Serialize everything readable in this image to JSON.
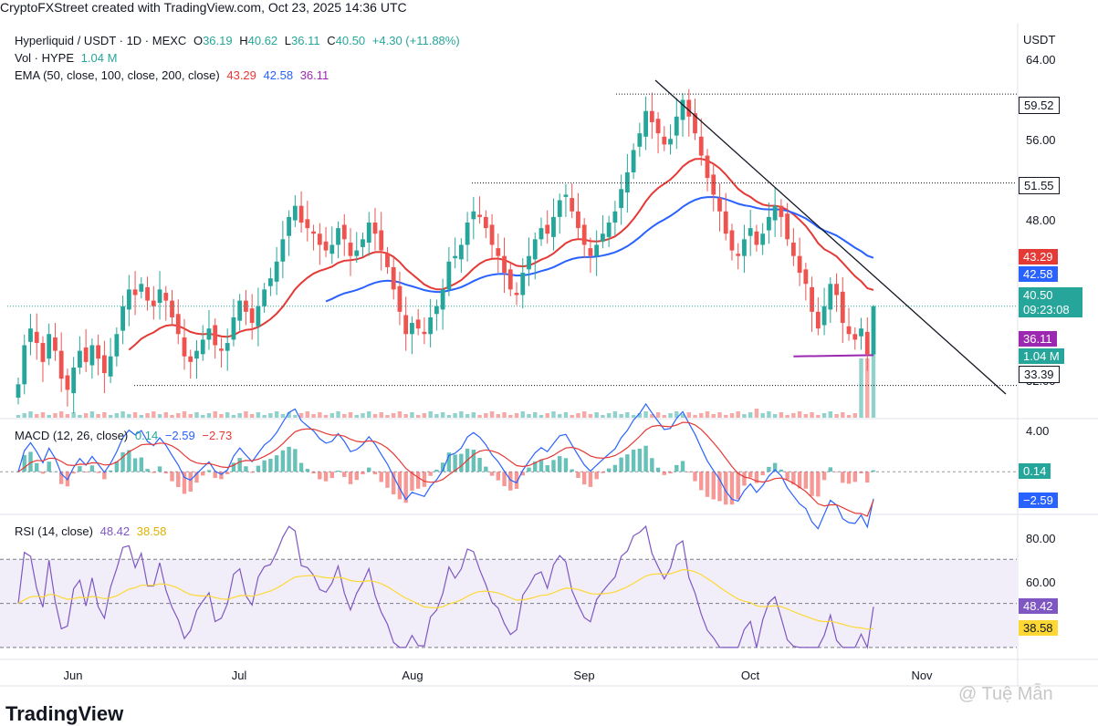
{
  "header": {
    "title": "CryptoFXStreet created with TradingView.com, Oct 23, 2025 14:36 UTC"
  },
  "legend": {
    "symbol": "Hyperliquid / USDT · 1D · MEXC",
    "o_label": "O",
    "o_value": "36.19",
    "h_label": "H",
    "h_value": "40.62",
    "l_label": "L",
    "l_value": "36.11",
    "c_label": "C",
    "c_value": "40.50",
    "change": "+4.30 (+11.88%)",
    "vol_label": "Vol · HYPE",
    "vol_value": "1.04 M",
    "ema_label": "EMA (50, close, 100, close, 200, close)",
    "ema50": "43.29",
    "ema100": "42.58",
    "ema200": "36.11",
    "macd_label": "MACD (12, 26, close)",
    "macd_hist": "0.14",
    "macd_line": "−2.59",
    "macd_signal": "−2.73",
    "rsi_label": "RSI (14, close)",
    "rsi_value": "48.42",
    "rsi_ma": "38.58"
  },
  "currency": "USDT",
  "price_axis_labels": [
    "64.00",
    "56.00",
    "48.00",
    "32.00"
  ],
  "macd_axis_labels": [
    "4.00"
  ],
  "rsi_axis_labels": [
    "80.00",
    "60.00"
  ],
  "x_axis_labels": [
    "Jun",
    "Jul",
    "Aug",
    "Sep",
    "Oct",
    "Nov"
  ],
  "badges": {
    "level_5952": "59.52",
    "level_5155": "51.55",
    "ema50": "43.29",
    "ema100": "42.58",
    "last_price": "40.50",
    "countdown": "09:23:08",
    "ema200": "36.11",
    "volume": "1.04 M",
    "level_3339": "33.39",
    "macd_hist": "0.14",
    "macd_line": "−2.59",
    "rsi": "48.42",
    "rsi_ma": "38.58"
  },
  "footer": {
    "logo": "TradingView",
    "watermark": "@ Tuệ Mẫn"
  },
  "colors": {
    "up": "#26a69a",
    "down": "#ef5350",
    "ema50": "#e53935",
    "ema100": "#2962ff",
    "ema200": "#9c27b0",
    "rsi": "#7e57c2",
    "rsi_ma": "#fdd835",
    "macd": "#2962ff",
    "signal": "#e53935"
  },
  "chart_data": [
    {
      "type": "candlestick",
      "title": "Hyperliquid / USDT · 1D · MEXC",
      "x": [
        "Jun",
        "Jul",
        "Aug",
        "Sep",
        "Oct",
        "Nov"
      ],
      "ylim": [
        30.5,
        65.5
      ],
      "horizontal_levels": [
        59.52,
        51.55,
        33.39
      ],
      "last_close": 40.5,
      "close_approx": [
        33.5,
        37.0,
        38.5,
        37.2,
        35.5,
        38.0,
        36.5,
        34.0,
        33.0,
        35.0,
        36.5,
        35.5,
        37.0,
        35.8,
        34.5,
        36.0,
        38.0,
        40.5,
        42.0,
        41.5,
        42.5,
        41.0,
        40.5,
        42.0,
        41.0,
        39.5,
        38.0,
        36.0,
        35.5,
        36.5,
        37.5,
        38.5,
        37.0,
        36.5,
        37.2,
        39.5,
        41.0,
        40.0,
        39.0,
        40.5,
        42.0,
        43.0,
        44.5,
        46.5,
        48.5,
        49.5,
        48.0,
        47.5,
        47.0,
        46.0,
        45.5,
        46.0,
        47.5,
        46.5,
        45.0,
        45.5,
        46.5,
        48.0,
        47.0,
        45.5,
        44.0,
        42.0,
        40.0,
        38.0,
        39.0,
        38.5,
        38.0,
        39.5,
        40.5,
        42.0,
        44.5,
        45.0,
        46.0,
        48.0,
        49.0,
        48.5,
        47.5,
        46.0,
        45.0,
        43.5,
        42.0,
        41.5,
        43.5,
        45.0,
        46.5,
        47.5,
        47.0,
        48.5,
        50.0,
        50.5,
        49.0,
        47.5,
        46.0,
        45.0,
        46.0,
        47.0,
        48.0,
        49.0,
        51.0,
        52.5,
        54.5,
        56.0,
        58.0,
        57.0,
        56.0,
        55.0,
        55.5,
        57.5,
        59.0,
        57.5,
        56.0,
        54.0,
        52.0,
        50.5,
        49.0,
        47.0,
        45.5,
        45.0,
        46.5,
        47.5,
        46.0,
        47.0,
        48.5,
        49.5,
        48.5,
        46.5,
        45.0,
        43.5,
        42.5,
        40.0,
        38.5,
        40.5,
        42.5,
        41.5,
        39.0,
        38.0,
        37.5,
        38.5,
        36.2,
        40.5
      ]
    },
    {
      "type": "line",
      "title": "EMA (50, close, 100, close, 200, close)",
      "series": [
        {
          "name": "50",
          "last": 43.29
        },
        {
          "name": "100",
          "last": 42.58
        },
        {
          "name": "200",
          "last": 36.11
        }
      ]
    },
    {
      "type": "bar",
      "title": "Vol · HYPE",
      "last": 1.04
    },
    {
      "type": "line",
      "title": "MACD (12, 26, close)",
      "ylim": [
        -4.0,
        5.0
      ],
      "series": [
        {
          "name": "MACD line",
          "last": -2.59
        },
        {
          "name": "Signal",
          "last": -2.73
        },
        {
          "name": "Histogram",
          "last": 0.14
        }
      ]
    },
    {
      "type": "line",
      "title": "RSI (14, close)",
      "ylim": [
        25,
        90
      ],
      "bands": [
        30,
        50,
        70
      ],
      "series": [
        {
          "name": "RSI",
          "last": 48.42
        },
        {
          "name": "RSI MA",
          "last": 38.58
        }
      ]
    }
  ]
}
